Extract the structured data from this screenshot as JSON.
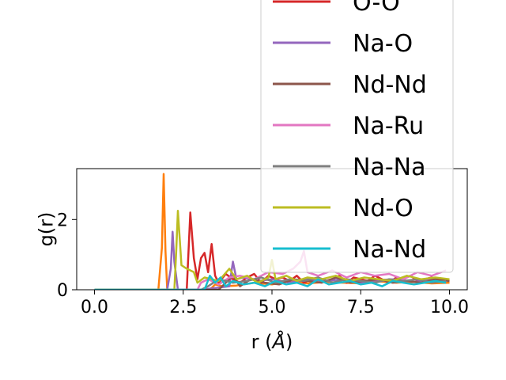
{
  "chart_data": {
    "type": "line",
    "title": "",
    "xlabel": "r ($\\AA$)",
    "ylabel": "g(r)",
    "xlim": [
      -0.5,
      10.5
    ],
    "ylim": [
      0,
      3.45
    ],
    "xticks": [
      0.0,
      2.5,
      5.0,
      7.5,
      10.0
    ],
    "xtick_labels": [
      "0.0",
      "2.5",
      "5.0",
      "7.5",
      "10.0"
    ],
    "yticks": [
      0,
      2
    ],
    "ytick_labels": [
      "0",
      "2"
    ],
    "grid": false,
    "legend_position": "upper-right",
    "series": [
      {
        "name": "",
        "color": "#ff7f0e",
        "x": [
          0,
          1.8,
          1.9,
          1.95,
          2.0,
          2.05,
          2.1,
          2.5,
          3.2,
          3.3,
          3.4,
          3.6,
          4.0,
          4.5,
          5.0,
          5.5,
          6.0,
          6.5,
          7.0,
          7.5,
          8.0,
          8.5,
          9.0,
          9.5,
          10.0
        ],
        "y": [
          0,
          0,
          1.2,
          3.3,
          1.1,
          0,
          0,
          0,
          0,
          0.05,
          0.15,
          0.1,
          0.12,
          0.2,
          0.15,
          0.25,
          0.18,
          0.22,
          0.2,
          0.18,
          0.24,
          0.2,
          0.22,
          0.18,
          0.2
        ]
      },
      {
        "name": "O-O",
        "color": "#d62728",
        "x": [
          0,
          2.6,
          2.7,
          2.8,
          2.9,
          3.0,
          3.1,
          3.2,
          3.3,
          3.4,
          3.5,
          3.7,
          3.9,
          4.1,
          4.3,
          4.5,
          4.7,
          4.9,
          5.1,
          5.3,
          5.5,
          5.7,
          5.9,
          6.1,
          6.3,
          6.5,
          6.7,
          6.9,
          7.1,
          7.3,
          7.5,
          7.7,
          7.9,
          8.1,
          8.3,
          8.5,
          8.7,
          8.9,
          9.1,
          9.3,
          9.5,
          9.7,
          9.9
        ],
        "y": [
          0,
          0,
          2.2,
          0.9,
          0.3,
          0.9,
          1.05,
          0.5,
          1.3,
          0.4,
          0.2,
          0.45,
          0.3,
          0.2,
          0.35,
          0.45,
          0.2,
          0.4,
          0.3,
          0.35,
          0.25,
          0.4,
          0.2,
          0.3,
          0.35,
          0.25,
          0.3,
          0.4,
          0.2,
          0.35,
          0.3,
          0.25,
          0.4,
          0.3,
          0.2,
          0.35,
          0.3,
          0.4,
          0.25,
          0.3,
          0.35,
          0.25,
          0.3
        ]
      },
      {
        "name": "Na-O",
        "color": "#9467bd",
        "x": [
          0,
          2.05,
          2.15,
          2.2,
          2.25,
          2.35,
          2.5,
          3.0,
          3.8,
          3.9,
          4.0,
          4.2,
          4.6,
          5.0,
          5.5,
          6.0,
          6.5,
          7.0,
          7.5,
          8.0,
          8.5,
          9.0,
          9.5,
          10.0
        ],
        "y": [
          0,
          0,
          0.6,
          1.65,
          0.8,
          0,
          0,
          0,
          0.1,
          0.8,
          0.3,
          0.35,
          0.25,
          0.3,
          0.2,
          0.3,
          0.25,
          0.3,
          0.2,
          0.28,
          0.3,
          0.22,
          0.3,
          0.25
        ]
      },
      {
        "name": "Nd-Nd",
        "color": "#8c564b",
        "x": [
          0,
          3.5,
          3.7,
          3.9,
          4.1,
          4.4,
          4.8,
          5.2,
          5.6,
          6.0,
          6.4,
          6.8,
          7.2,
          7.6,
          8.0,
          8.4,
          8.8,
          9.2,
          9.6,
          10.0
        ],
        "y": [
          0,
          0,
          0.2,
          0.4,
          0.1,
          0.3,
          0.2,
          0.15,
          0.3,
          0.25,
          0.2,
          0.35,
          0.2,
          0.25,
          0.3,
          0.2,
          0.25,
          0.2,
          0.3,
          0.25
        ]
      },
      {
        "name": "Na-Ru",
        "color": "#e377c2",
        "x": [
          0,
          2.9,
          3.0,
          3.2,
          3.5,
          3.8,
          4.1,
          4.5,
          4.9,
          5.3,
          5.6,
          5.8,
          5.9,
          6.0,
          6.3,
          6.7,
          7.1,
          7.5,
          7.9,
          8.3,
          8.7,
          9.1,
          9.5,
          9.9
        ],
        "y": [
          0,
          0,
          0.2,
          0.3,
          0.15,
          0.35,
          0.4,
          0.3,
          0.5,
          0.45,
          0.6,
          0.8,
          1.1,
          0.5,
          0.4,
          0.55,
          0.35,
          0.5,
          0.4,
          0.45,
          0.3,
          0.5,
          0.4,
          0.55
        ]
      },
      {
        "name": "Na-Na",
        "color": "#7f7f7f",
        "x": [
          0,
          3.0,
          3.2,
          3.5,
          3.9,
          4.3,
          4.7,
          5.1,
          5.5,
          5.9,
          6.3,
          6.7,
          7.1,
          7.5,
          7.9,
          8.3,
          8.7,
          9.1,
          9.5,
          9.9
        ],
        "y": [
          0,
          0,
          0.1,
          0.3,
          0.2,
          0.25,
          0.35,
          0.2,
          0.3,
          0.25,
          0.35,
          0.2,
          0.3,
          0.25,
          0.2,
          0.3,
          0.25,
          0.3,
          0.2,
          0.25
        ]
      },
      {
        "name": "Nd-O",
        "color": "#bcbd22",
        "x": [
          0,
          2.25,
          2.3,
          2.35,
          2.45,
          2.6,
          2.8,
          2.9,
          3.1,
          3.5,
          3.8,
          4.0,
          4.3,
          4.6,
          4.9,
          5.0,
          5.1,
          5.4,
          5.7,
          6.0,
          6.4,
          6.8,
          7.2,
          7.6,
          8.0,
          8.4,
          8.8,
          9.2,
          9.6,
          10.0
        ],
        "y": [
          0,
          0,
          1.0,
          2.25,
          0.7,
          0.6,
          0.5,
          0.2,
          0.35,
          0.25,
          0.6,
          0.3,
          0.4,
          0.2,
          0.35,
          0.85,
          0.3,
          0.4,
          0.25,
          0.35,
          0.3,
          0.4,
          0.25,
          0.35,
          0.3,
          0.25,
          0.4,
          0.3,
          0.35,
          0.3
        ]
      },
      {
        "name": "Na-Nd",
        "color": "#17becf",
        "x": [
          0,
          3.1,
          3.25,
          3.4,
          3.55,
          3.7,
          3.9,
          4.2,
          4.5,
          4.8,
          5.1,
          5.4,
          5.7,
          6.0,
          6.3,
          6.6,
          6.9,
          7.2,
          7.5,
          7.8,
          8.1,
          8.4,
          8.7,
          9.0,
          9.3,
          9.6,
          9.9
        ],
        "y": [
          0,
          0,
          0.4,
          0.2,
          0.35,
          0.1,
          0.25,
          0.15,
          0.2,
          0.1,
          0.25,
          0.15,
          0.2,
          0.1,
          0.3,
          0.15,
          0.2,
          0.25,
          0.15,
          0.2,
          0.1,
          0.25,
          0.2,
          0.15,
          0.2,
          0.25,
          0.2
        ]
      }
    ]
  }
}
